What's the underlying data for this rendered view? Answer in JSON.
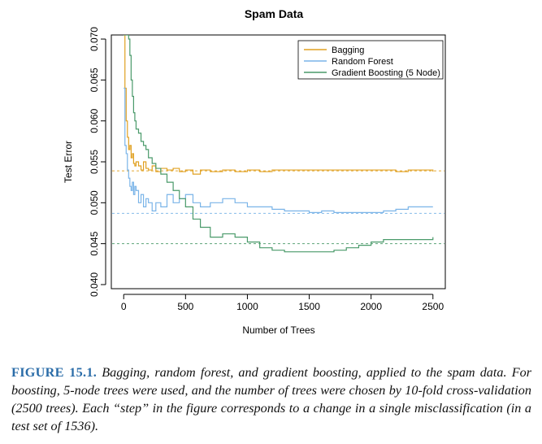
{
  "chart_data": {
    "type": "line",
    "title": "Spam Data",
    "xlabel": "Number of Trees",
    "ylabel": "Test Error",
    "xlim": [
      -100,
      2600
    ],
    "ylim": [
      0.0395,
      0.0705
    ],
    "x_ticks": [
      0,
      500,
      1000,
      1500,
      2000,
      2500
    ],
    "y_ticks": [
      0.04,
      0.045,
      0.05,
      0.055,
      0.06,
      0.065,
      0.07
    ],
    "x_tick_labels": [
      "0",
      "500",
      "1000",
      "1500",
      "2000",
      "2500"
    ],
    "y_tick_labels": [
      "0.040",
      "0.045",
      "0.050",
      "0.055",
      "0.060",
      "0.065",
      "0.070"
    ],
    "legend_position": "top-right",
    "reference_lines": [
      {
        "series": "Bagging",
        "y": 0.0539
      },
      {
        "series": "Random Forest",
        "y": 0.0487
      },
      {
        "series": "Gradient Boosting (5 Node)",
        "y": 0.045
      }
    ],
    "series": [
      {
        "name": "Bagging",
        "color": "#e0a020",
        "x": [
          0,
          10,
          20,
          30,
          40,
          50,
          60,
          70,
          80,
          90,
          100,
          120,
          140,
          160,
          180,
          200,
          230,
          260,
          300,
          350,
          400,
          450,
          500,
          560,
          620,
          700,
          800,
          900,
          1000,
          1100,
          1200,
          1300,
          1400,
          1500,
          1600,
          1700,
          1800,
          1900,
          2000,
          2100,
          2200,
          2300,
          2400,
          2500
        ],
        "y": [
          0.0705,
          0.064,
          0.06,
          0.058,
          0.0565,
          0.057,
          0.0555,
          0.056,
          0.0548,
          0.0545,
          0.055,
          0.0545,
          0.054,
          0.055,
          0.0542,
          0.054,
          0.0545,
          0.0538,
          0.0542,
          0.054,
          0.0542,
          0.0538,
          0.054,
          0.0535,
          0.054,
          0.0538,
          0.054,
          0.0538,
          0.054,
          0.0538,
          0.054,
          0.054,
          0.054,
          0.054,
          0.054,
          0.054,
          0.054,
          0.054,
          0.054,
          0.054,
          0.0538,
          0.054,
          0.054,
          0.0538
        ]
      },
      {
        "name": "Random Forest",
        "color": "#7ab4e8",
        "x": [
          0,
          10,
          20,
          30,
          40,
          50,
          60,
          70,
          80,
          90,
          100,
          120,
          140,
          160,
          180,
          200,
          230,
          260,
          300,
          350,
          400,
          450,
          500,
          560,
          620,
          700,
          800,
          900,
          1000,
          1100,
          1200,
          1300,
          1400,
          1500,
          1600,
          1700,
          1800,
          1900,
          2000,
          2100,
          2200,
          2300,
          2400,
          2500
        ],
        "y": [
          0.064,
          0.057,
          0.056,
          0.054,
          0.053,
          0.052,
          0.0515,
          0.0525,
          0.051,
          0.052,
          0.0515,
          0.05,
          0.051,
          0.0495,
          0.0505,
          0.05,
          0.049,
          0.05,
          0.0495,
          0.051,
          0.05,
          0.0505,
          0.051,
          0.05,
          0.0495,
          0.05,
          0.0505,
          0.05,
          0.0495,
          0.0495,
          0.0492,
          0.049,
          0.049,
          0.0488,
          0.049,
          0.0488,
          0.0488,
          0.0488,
          0.0488,
          0.049,
          0.0492,
          0.0495,
          0.0495,
          0.0495
        ]
      },
      {
        "name": "Gradient Boosting (5 Node)",
        "color": "#4a9a6a",
        "x": [
          0,
          10,
          20,
          30,
          40,
          50,
          60,
          70,
          80,
          90,
          100,
          120,
          140,
          160,
          180,
          200,
          230,
          260,
          300,
          350,
          400,
          450,
          500,
          560,
          620,
          700,
          800,
          900,
          1000,
          1100,
          1200,
          1300,
          1400,
          1500,
          1600,
          1700,
          1800,
          1900,
          2000,
          2100,
          2200,
          2300,
          2400,
          2500
        ],
        "y": [
          0.0705,
          0.0705,
          0.0705,
          0.0705,
          0.07,
          0.068,
          0.065,
          0.063,
          0.061,
          0.06,
          0.059,
          0.0585,
          0.0575,
          0.057,
          0.0565,
          0.0555,
          0.0548,
          0.0542,
          0.0535,
          0.0525,
          0.0515,
          0.0505,
          0.0495,
          0.048,
          0.047,
          0.0458,
          0.0462,
          0.0458,
          0.0452,
          0.0445,
          0.0442,
          0.044,
          0.044,
          0.044,
          0.044,
          0.0442,
          0.0445,
          0.0448,
          0.0452,
          0.0455,
          0.0455,
          0.0455,
          0.0455,
          0.0458
        ]
      }
    ]
  },
  "caption": {
    "label": "FIGURE 15.1.",
    "text": "Bagging, random forest, and gradient boosting, applied to the spam data. For boosting, 5-node trees were used, and the number of trees were chosen by 10-fold cross-validation (2500 trees). Each “step” in the figure corresponds to a change in a single misclassification (in a test set of 1536)."
  }
}
